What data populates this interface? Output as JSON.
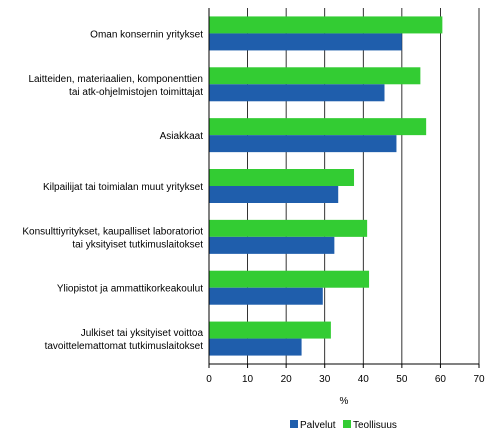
{
  "chart_data": {
    "type": "bar",
    "orientation": "horizontal",
    "categories": [
      [
        "Oman konsernin yritykset"
      ],
      [
        "Laitteiden, materiaalien, komponenttien",
        "tai atk-ohjelmistojen toimittajat"
      ],
      [
        "Asiakkaat"
      ],
      [
        "Kilpailijat tai toimialan muut yritykset"
      ],
      [
        "Konsulttiyritykset, kaupalliset laboratoriot",
        "tai yksityiset tutkimuslaitokset"
      ],
      [
        "Yliopistot ja ammattikorkeakoulut"
      ],
      [
        "Julkiset tai yksityiset voittoa",
        "tavoittelemattomat tutkimuslaitokset"
      ]
    ],
    "series": [
      {
        "name": "Teollisuus",
        "color": "#33cc33",
        "values": [
          60.5,
          54.8,
          56.3,
          37.6,
          41.0,
          41.5,
          31.6
        ]
      },
      {
        "name": "Palvelut",
        "color": "#1f5eac",
        "values": [
          50.0,
          45.5,
          48.6,
          33.5,
          32.5,
          29.5,
          24.0
        ]
      }
    ],
    "xlabel": "%",
    "xlim": [
      0,
      70
    ],
    "xticks": [
      0,
      10,
      20,
      30,
      40,
      50,
      60,
      70
    ],
    "grid": true,
    "legend": {
      "position": "bottom",
      "entries": [
        "Palvelut",
        "Teollisuus"
      ]
    }
  }
}
